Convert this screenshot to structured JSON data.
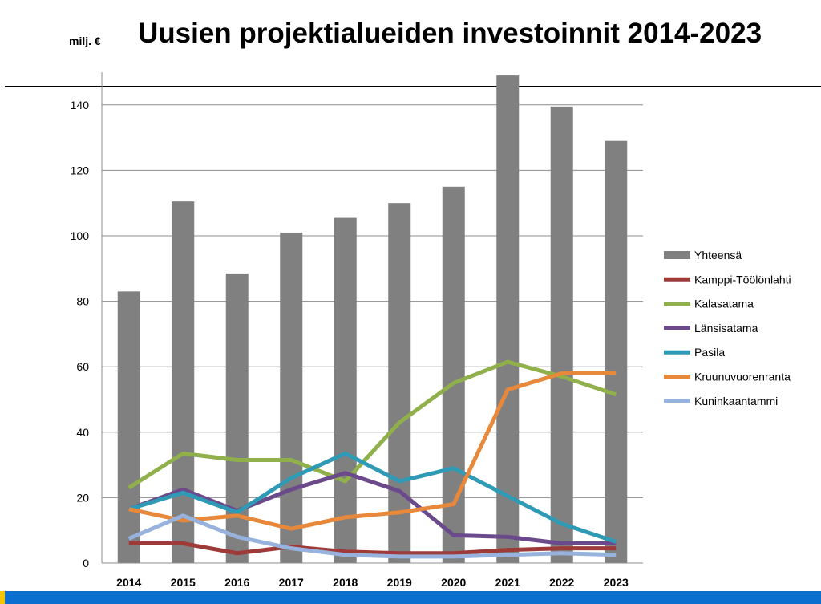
{
  "header": {
    "title": "Uusien projektialueiden investoinnit 2014-2023",
    "unit": "milj. €"
  },
  "chart_data": {
    "type": "bar",
    "categories": [
      "2014",
      "2015",
      "2016",
      "2017",
      "2018",
      "2019",
      "2020",
      "2021",
      "2022",
      "2023"
    ],
    "ylim": [
      0,
      150
    ],
    "yticks": [
      0,
      20,
      40,
      60,
      80,
      100,
      120,
      140
    ],
    "grid": true,
    "legend_position": "right",
    "series": [
      {
        "name": "Yhteensä",
        "type": "bar",
        "color": "#808080",
        "values": [
          83,
          110.5,
          88.5,
          101,
          105.5,
          110,
          115,
          149,
          139.5,
          129
        ]
      },
      {
        "name": "Kamppi-Töölönlahti",
        "type": "line",
        "color": "#9e3a38",
        "values": [
          6,
          6,
          3,
          5,
          3.5,
          3,
          3,
          4,
          4.5,
          4.5
        ]
      },
      {
        "name": "Kalasatama",
        "type": "line",
        "color": "#8fb04a",
        "values": [
          23,
          33.5,
          31.5,
          31.5,
          25,
          43,
          55,
          61.5,
          57,
          51.5
        ]
      },
      {
        "name": "Länsisatama",
        "type": "line",
        "color": "#6b4a8c",
        "values": [
          16.5,
          22.5,
          16,
          22.5,
          27.5,
          22,
          8.5,
          8,
          6,
          6
        ]
      },
      {
        "name": "Pasila",
        "type": "line",
        "color": "#2f9ab5",
        "values": [
          16.5,
          21.5,
          15.5,
          26,
          33.5,
          25,
          29,
          20.5,
          12,
          6.5
        ]
      },
      {
        "name": "Kruunuvuorenranta",
        "type": "line",
        "color": "#e8883a",
        "values": [
          16.5,
          13,
          14.5,
          10.5,
          14,
          15.5,
          18,
          53,
          58,
          58
        ]
      },
      {
        "name": "Kuninkaantammi",
        "type": "line",
        "color": "#97b2dc",
        "values": [
          7.5,
          14.5,
          8,
          4.5,
          2.5,
          2,
          2,
          2.5,
          3,
          2.5
        ]
      }
    ]
  }
}
